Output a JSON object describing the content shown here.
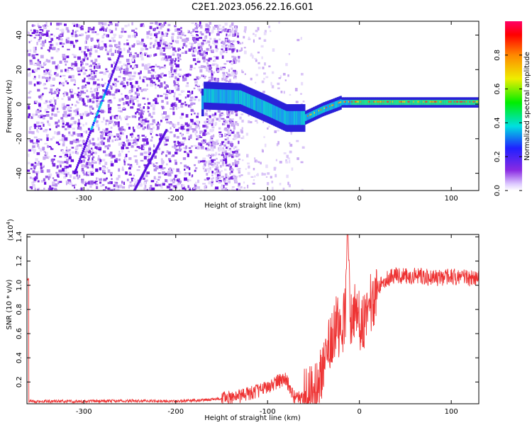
{
  "title": "C2E1.2023.056.22.16.G01",
  "chart_data": [
    {
      "type": "heatmap",
      "xlabel": "Height of straight line (km)",
      "ylabel": "Frequency (Hz)",
      "xlim": [
        -362,
        130
      ],
      "ylim": [
        -50,
        48
      ],
      "xticks": [
        -300,
        -200,
        -100,
        0,
        100
      ],
      "xtick_labels": [
        "-300",
        "-200",
        "-100",
        "0",
        "100"
      ],
      "yticks": [
        -40,
        -20,
        0,
        20,
        40
      ],
      "ytick_labels": [
        "-40",
        "-20",
        "0",
        "20",
        "40"
      ],
      "colorbar": {
        "label": "Normalized spectral amplitude",
        "range": [
          0,
          1
        ],
        "ticks": [
          0.0,
          0.2,
          0.4,
          0.6,
          0.8
        ],
        "tick_labels": [
          "0.0",
          "0.2",
          "0.4",
          "0.6",
          "0.8"
        ]
      },
      "features": [
        {
          "name": "doppler-line",
          "points": [
            [
              -170,
              5
            ],
            [
              -130,
              4
            ],
            [
              -100,
              -3
            ],
            [
              -80,
              -8
            ],
            [
              -60,
              -8
            ],
            [
              -40,
              -3
            ],
            [
              -20,
              1
            ],
            [
              0,
              1
            ],
            [
              130,
              1
            ]
          ]
        },
        {
          "name": "diagonal-trace-1",
          "points": [
            [
              -310,
              -40
            ],
            [
              -260,
              30
            ]
          ]
        },
        {
          "name": "diagonal-trace-2",
          "points": [
            [
              -245,
              -50
            ],
            [
              -210,
              -15
            ]
          ]
        }
      ]
    },
    {
      "type": "line",
      "xlabel": "Height of straight line (km)",
      "ylabel": "SNR (10 * v/v)",
      "scale_label": "(x10",
      "scale_exp": "4",
      "xlim": [
        -362,
        130
      ],
      "ylim": [
        0.02,
        1.42
      ],
      "xticks": [
        -300,
        -200,
        -100,
        0,
        100
      ],
      "xtick_labels": [
        "-300",
        "-200",
        "-100",
        "0",
        "100"
      ],
      "yticks": [
        0.2,
        0.4,
        0.6,
        0.8,
        1.0,
        1.2,
        1.4
      ],
      "ytick_labels": [
        "0.2",
        "0.4",
        "0.6",
        "0.8",
        "1.0",
        "1.2",
        "1.4"
      ],
      "color": "#ee3333",
      "series": [
        {
          "x": [
            -360,
            -300,
            -250,
            -200,
            -170,
            -140,
            -120,
            -100,
            -90,
            -80,
            -75,
            -70,
            -60,
            -50,
            -45,
            -40,
            -35,
            -30,
            -25,
            -20,
            -15,
            -13,
            -10,
            -5,
            0,
            5,
            10,
            15,
            20,
            30,
            40,
            50,
            60,
            80,
            100,
            120,
            130
          ],
          "values": [
            0.04,
            0.04,
            0.045,
            0.04,
            0.05,
            0.07,
            0.1,
            0.16,
            0.2,
            0.22,
            0.14,
            0.06,
            0.07,
            0.1,
            0.16,
            0.32,
            0.5,
            0.6,
            0.68,
            0.62,
            0.8,
            1.42,
            0.72,
            0.78,
            0.7,
            0.72,
            0.8,
            0.9,
            0.98,
            1.06,
            1.08,
            1.07,
            1.08,
            1.06,
            1.07,
            1.06,
            1.05
          ]
        }
      ]
    }
  ]
}
